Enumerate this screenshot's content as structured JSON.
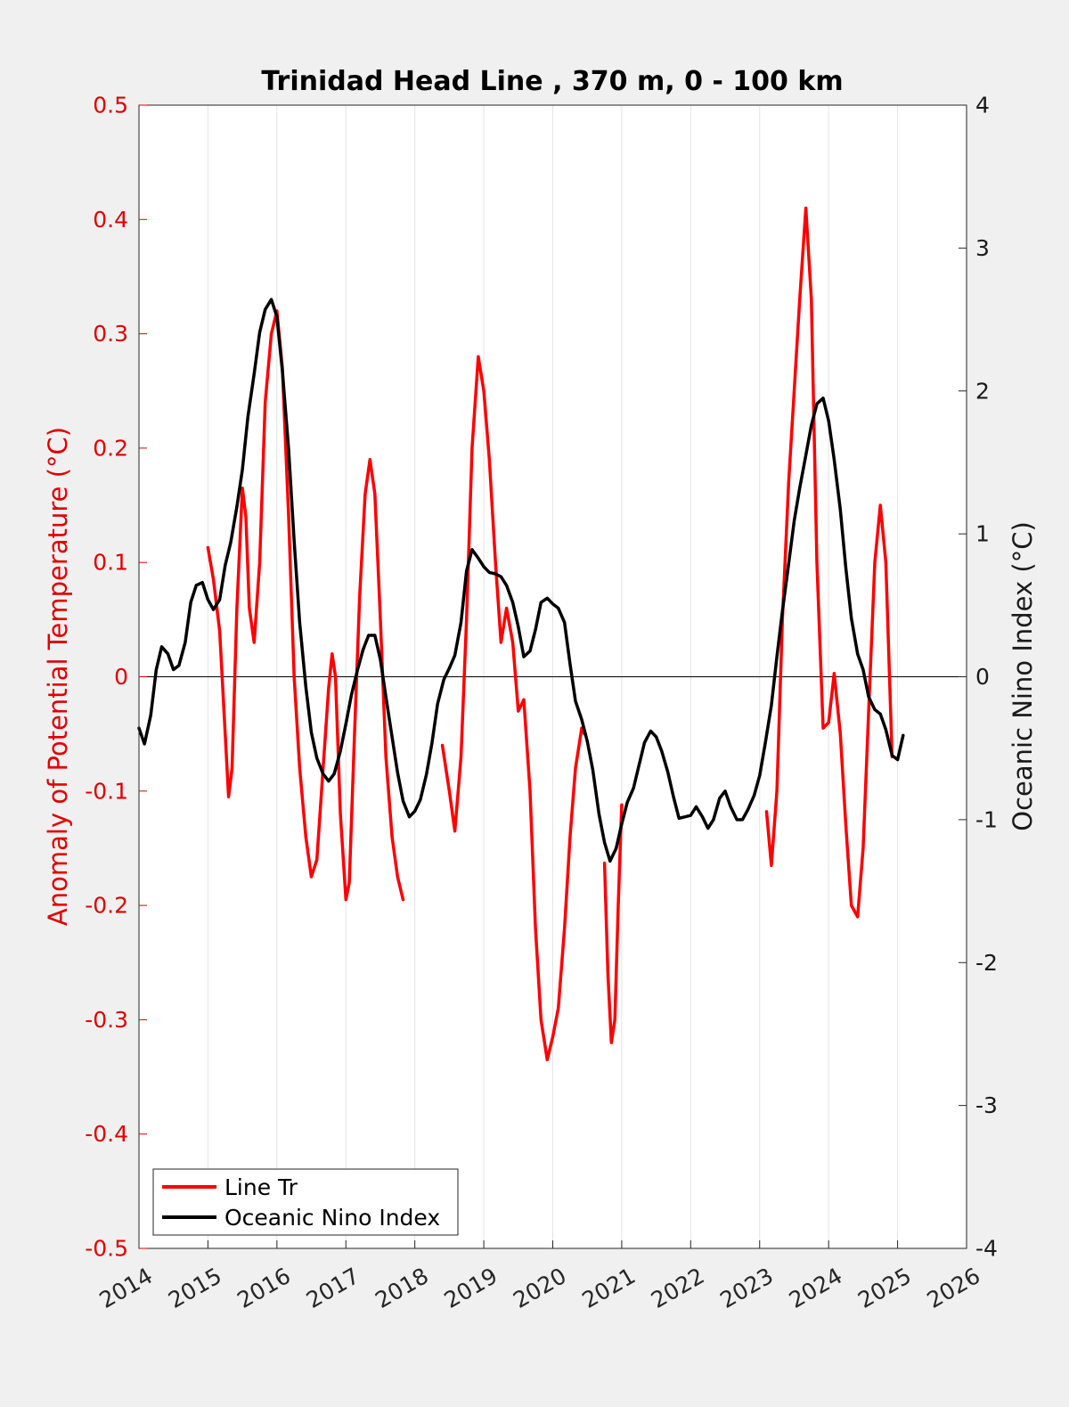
{
  "chart_data": {
    "type": "line",
    "title": "Trinidad Head Line , 370 m, 0 - 100 km",
    "ylabel_left": "Anomaly of Potential Temperature (°C)",
    "ylabel_right": "Oceanic Nino Index (°C)",
    "xlabel": "",
    "xlim": [
      2014,
      2026
    ],
    "ylim_left": [
      -0.5,
      0.5
    ],
    "ylim_right": [
      -4,
      4
    ],
    "x_ticks": [
      "2014",
      "2015",
      "2016",
      "2017",
      "2018",
      "2019",
      "2020",
      "2021",
      "2022",
      "2023",
      "2024",
      "2025",
      "2026"
    ],
    "y_left_ticks": [
      "-0.5",
      "-0.4",
      "-0.3",
      "-0.2",
      "-0.1",
      "0",
      "0.1",
      "0.2",
      "0.3",
      "0.4",
      "0.5"
    ],
    "y_right_ticks": [
      "-4",
      "-3",
      "-2",
      "-1",
      "0",
      "1",
      "2",
      "3",
      "4"
    ],
    "grid": "vertical",
    "legend_position": "bottom-left",
    "colors": {
      "line_tr": "#ff0000",
      "oni": "#000000",
      "left_axis": "#e00000",
      "right_axis": "#1a1a1a"
    },
    "series": [
      {
        "name": "Line Tr",
        "axis": "left",
        "color": "#ff0000",
        "segments": [
          [
            [
              2015.0,
              0.113
            ],
            [
              2015.08,
              0.085
            ],
            [
              2015.17,
              0.04
            ],
            [
              2015.25,
              -0.05
            ],
            [
              2015.3,
              -0.105
            ],
            [
              2015.35,
              -0.08
            ],
            [
              2015.42,
              0.06
            ],
            [
              2015.5,
              0.165
            ],
            [
              2015.55,
              0.14
            ],
            [
              2015.6,
              0.06
            ],
            [
              2015.67,
              0.03
            ],
            [
              2015.75,
              0.1
            ],
            [
              2015.83,
              0.24
            ],
            [
              2015.92,
              0.3
            ],
            [
              2016.0,
              0.32
            ],
            [
              2016.08,
              0.27
            ],
            [
              2016.17,
              0.14
            ],
            [
              2016.25,
              0.0
            ],
            [
              2016.33,
              -0.08
            ],
            [
              2016.42,
              -0.14
            ],
            [
              2016.5,
              -0.175
            ],
            [
              2016.58,
              -0.16
            ],
            [
              2016.67,
              -0.08
            ],
            [
              2016.75,
              -0.01
            ],
            [
              2016.8,
              0.02
            ],
            [
              2016.85,
              0.0
            ],
            [
              2016.92,
              -0.12
            ],
            [
              2017.0,
              -0.195
            ],
            [
              2017.05,
              -0.18
            ],
            [
              2017.12,
              -0.06
            ],
            [
              2017.2,
              0.07
            ],
            [
              2017.28,
              0.16
            ],
            [
              2017.35,
              0.19
            ],
            [
              2017.42,
              0.16
            ],
            [
              2017.5,
              0.05
            ],
            [
              2017.58,
              -0.07
            ],
            [
              2017.67,
              -0.14
            ],
            [
              2017.75,
              -0.175
            ],
            [
              2017.83,
              -0.195
            ]
          ],
          [
            [
              2018.4,
              -0.06
            ],
            [
              2018.5,
              -0.1
            ],
            [
              2018.58,
              -0.135
            ],
            [
              2018.67,
              -0.07
            ],
            [
              2018.75,
              0.05
            ],
            [
              2018.83,
              0.2
            ],
            [
              2018.92,
              0.28
            ],
            [
              2019.0,
              0.25
            ],
            [
              2019.08,
              0.19
            ],
            [
              2019.17,
              0.1
            ],
            [
              2019.25,
              0.03
            ],
            [
              2019.33,
              0.06
            ],
            [
              2019.42,
              0.03
            ],
            [
              2019.5,
              -0.03
            ],
            [
              2019.58,
              -0.02
            ],
            [
              2019.67,
              -0.1
            ],
            [
              2019.75,
              -0.22
            ],
            [
              2019.83,
              -0.3
            ],
            [
              2019.92,
              -0.335
            ],
            [
              2020.0,
              -0.315
            ],
            [
              2020.08,
              -0.29
            ],
            [
              2020.17,
              -0.22
            ],
            [
              2020.25,
              -0.14
            ],
            [
              2020.33,
              -0.08
            ],
            [
              2020.42,
              -0.045
            ],
            [
              2020.46,
              -0.05
            ]
          ],
          [
            [
              2020.75,
              -0.163
            ],
            [
              2020.8,
              -0.26
            ],
            [
              2020.85,
              -0.32
            ],
            [
              2020.9,
              -0.3
            ],
            [
              2020.95,
              -0.2
            ],
            [
              2021.0,
              -0.112
            ]
          ],
          [
            [
              2023.1,
              -0.118
            ],
            [
              2023.17,
              -0.165
            ],
            [
              2023.25,
              -0.1
            ],
            [
              2023.33,
              0.05
            ],
            [
              2023.42,
              0.17
            ],
            [
              2023.5,
              0.25
            ],
            [
              2023.58,
              0.33
            ],
            [
              2023.67,
              0.41
            ],
            [
              2023.75,
              0.33
            ],
            [
              2023.83,
              0.1
            ],
            [
              2023.92,
              -0.045
            ],
            [
              2024.0,
              -0.04
            ],
            [
              2024.08,
              0.003
            ],
            [
              2024.17,
              -0.05
            ],
            [
              2024.25,
              -0.13
            ],
            [
              2024.33,
              -0.2
            ],
            [
              2024.42,
              -0.21
            ],
            [
              2024.5,
              -0.15
            ],
            [
              2024.58,
              -0.03
            ],
            [
              2024.67,
              0.1
            ],
            [
              2024.75,
              0.15
            ],
            [
              2024.83,
              0.1
            ],
            [
              2024.92,
              -0.07
            ]
          ]
        ]
      },
      {
        "name": "Oceanic Nino Index",
        "axis": "right",
        "color": "#000000",
        "segments": [
          [
            [
              2014.0,
              -0.36
            ],
            [
              2014.08,
              -0.47
            ],
            [
              2014.17,
              -0.27
            ],
            [
              2014.25,
              0.05
            ],
            [
              2014.33,
              0.21
            ],
            [
              2014.42,
              0.16
            ],
            [
              2014.5,
              0.05
            ],
            [
              2014.58,
              0.08
            ],
            [
              2014.67,
              0.24
            ],
            [
              2014.75,
              0.52
            ],
            [
              2014.83,
              0.64
            ],
            [
              2014.92,
              0.66
            ],
            [
              2015.0,
              0.54
            ],
            [
              2015.08,
              0.47
            ],
            [
              2015.17,
              0.54
            ],
            [
              2015.25,
              0.78
            ],
            [
              2015.33,
              0.94
            ],
            [
              2015.42,
              1.19
            ],
            [
              2015.5,
              1.45
            ],
            [
              2015.58,
              1.82
            ],
            [
              2015.67,
              2.12
            ],
            [
              2015.75,
              2.41
            ],
            [
              2015.83,
              2.57
            ],
            [
              2015.92,
              2.64
            ],
            [
              2016.0,
              2.52
            ],
            [
              2016.08,
              2.14
            ],
            [
              2016.17,
              1.59
            ],
            [
              2016.25,
              0.95
            ],
            [
              2016.33,
              0.38
            ],
            [
              2016.42,
              -0.07
            ],
            [
              2016.5,
              -0.39
            ],
            [
              2016.58,
              -0.57
            ],
            [
              2016.67,
              -0.68
            ],
            [
              2016.75,
              -0.73
            ],
            [
              2016.83,
              -0.68
            ],
            [
              2016.92,
              -0.52
            ],
            [
              2017.0,
              -0.33
            ],
            [
              2017.08,
              -0.13
            ],
            [
              2017.17,
              0.05
            ],
            [
              2017.25,
              0.19
            ],
            [
              2017.33,
              0.29
            ],
            [
              2017.42,
              0.29
            ],
            [
              2017.5,
              0.12
            ],
            [
              2017.58,
              -0.14
            ],
            [
              2017.67,
              -0.42
            ],
            [
              2017.75,
              -0.67
            ],
            [
              2017.83,
              -0.87
            ],
            [
              2017.92,
              -0.98
            ],
            [
              2018.0,
              -0.94
            ],
            [
              2018.08,
              -0.86
            ],
            [
              2018.17,
              -0.68
            ],
            [
              2018.25,
              -0.46
            ],
            [
              2018.33,
              -0.19
            ],
            [
              2018.42,
              -0.02
            ],
            [
              2018.5,
              0.06
            ],
            [
              2018.58,
              0.15
            ],
            [
              2018.67,
              0.38
            ],
            [
              2018.75,
              0.74
            ],
            [
              2018.83,
              0.89
            ],
            [
              2018.92,
              0.83
            ],
            [
              2019.0,
              0.77
            ],
            [
              2019.08,
              0.73
            ],
            [
              2019.17,
              0.72
            ],
            [
              2019.25,
              0.7
            ],
            [
              2019.33,
              0.64
            ],
            [
              2019.42,
              0.52
            ],
            [
              2019.5,
              0.35
            ],
            [
              2019.58,
              0.14
            ],
            [
              2019.67,
              0.18
            ],
            [
              2019.75,
              0.33
            ],
            [
              2019.83,
              0.52
            ],
            [
              2019.92,
              0.55
            ],
            [
              2020.0,
              0.51
            ],
            [
              2020.08,
              0.48
            ],
            [
              2020.17,
              0.38
            ],
            [
              2020.25,
              0.09
            ],
            [
              2020.33,
              -0.17
            ],
            [
              2020.42,
              -0.3
            ],
            [
              2020.5,
              -0.45
            ],
            [
              2020.58,
              -0.65
            ],
            [
              2020.67,
              -0.96
            ],
            [
              2020.75,
              -1.16
            ],
            [
              2020.83,
              -1.29
            ],
            [
              2020.92,
              -1.2
            ],
            [
              2021.0,
              -1.03
            ],
            [
              2021.08,
              -0.88
            ],
            [
              2021.17,
              -0.78
            ],
            [
              2021.25,
              -0.62
            ],
            [
              2021.33,
              -0.46
            ],
            [
              2021.42,
              -0.38
            ],
            [
              2021.5,
              -0.42
            ],
            [
              2021.58,
              -0.52
            ],
            [
              2021.67,
              -0.67
            ],
            [
              2021.75,
              -0.84
            ],
            [
              2021.83,
              -0.99
            ],
            [
              2021.92,
              -0.98
            ],
            [
              2022.0,
              -0.97
            ],
            [
              2022.08,
              -0.91
            ],
            [
              2022.17,
              -0.98
            ],
            [
              2022.25,
              -1.06
            ],
            [
              2022.33,
              -1.0
            ],
            [
              2022.42,
              -0.85
            ],
            [
              2022.5,
              -0.8
            ],
            [
              2022.58,
              -0.91
            ],
            [
              2022.67,
              -1.0
            ],
            [
              2022.75,
              -1.0
            ],
            [
              2022.83,
              -0.93
            ],
            [
              2022.92,
              -0.83
            ],
            [
              2023.0,
              -0.69
            ],
            [
              2023.08,
              -0.47
            ],
            [
              2023.17,
              -0.2
            ],
            [
              2023.25,
              0.14
            ],
            [
              2023.33,
              0.46
            ],
            [
              2023.42,
              0.79
            ],
            [
              2023.5,
              1.09
            ],
            [
              2023.58,
              1.32
            ],
            [
              2023.67,
              1.55
            ],
            [
              2023.75,
              1.76
            ],
            [
              2023.83,
              1.91
            ],
            [
              2023.92,
              1.95
            ],
            [
              2024.0,
              1.79
            ],
            [
              2024.08,
              1.52
            ],
            [
              2024.17,
              1.17
            ],
            [
              2024.25,
              0.76
            ],
            [
              2024.33,
              0.41
            ],
            [
              2024.42,
              0.16
            ],
            [
              2024.5,
              0.05
            ],
            [
              2024.58,
              -0.14
            ],
            [
              2024.67,
              -0.23
            ],
            [
              2024.75,
              -0.26
            ],
            [
              2024.83,
              -0.37
            ],
            [
              2024.92,
              -0.55
            ],
            [
              2025.0,
              -0.58
            ],
            [
              2025.08,
              -0.41
            ]
          ]
        ]
      }
    ]
  }
}
